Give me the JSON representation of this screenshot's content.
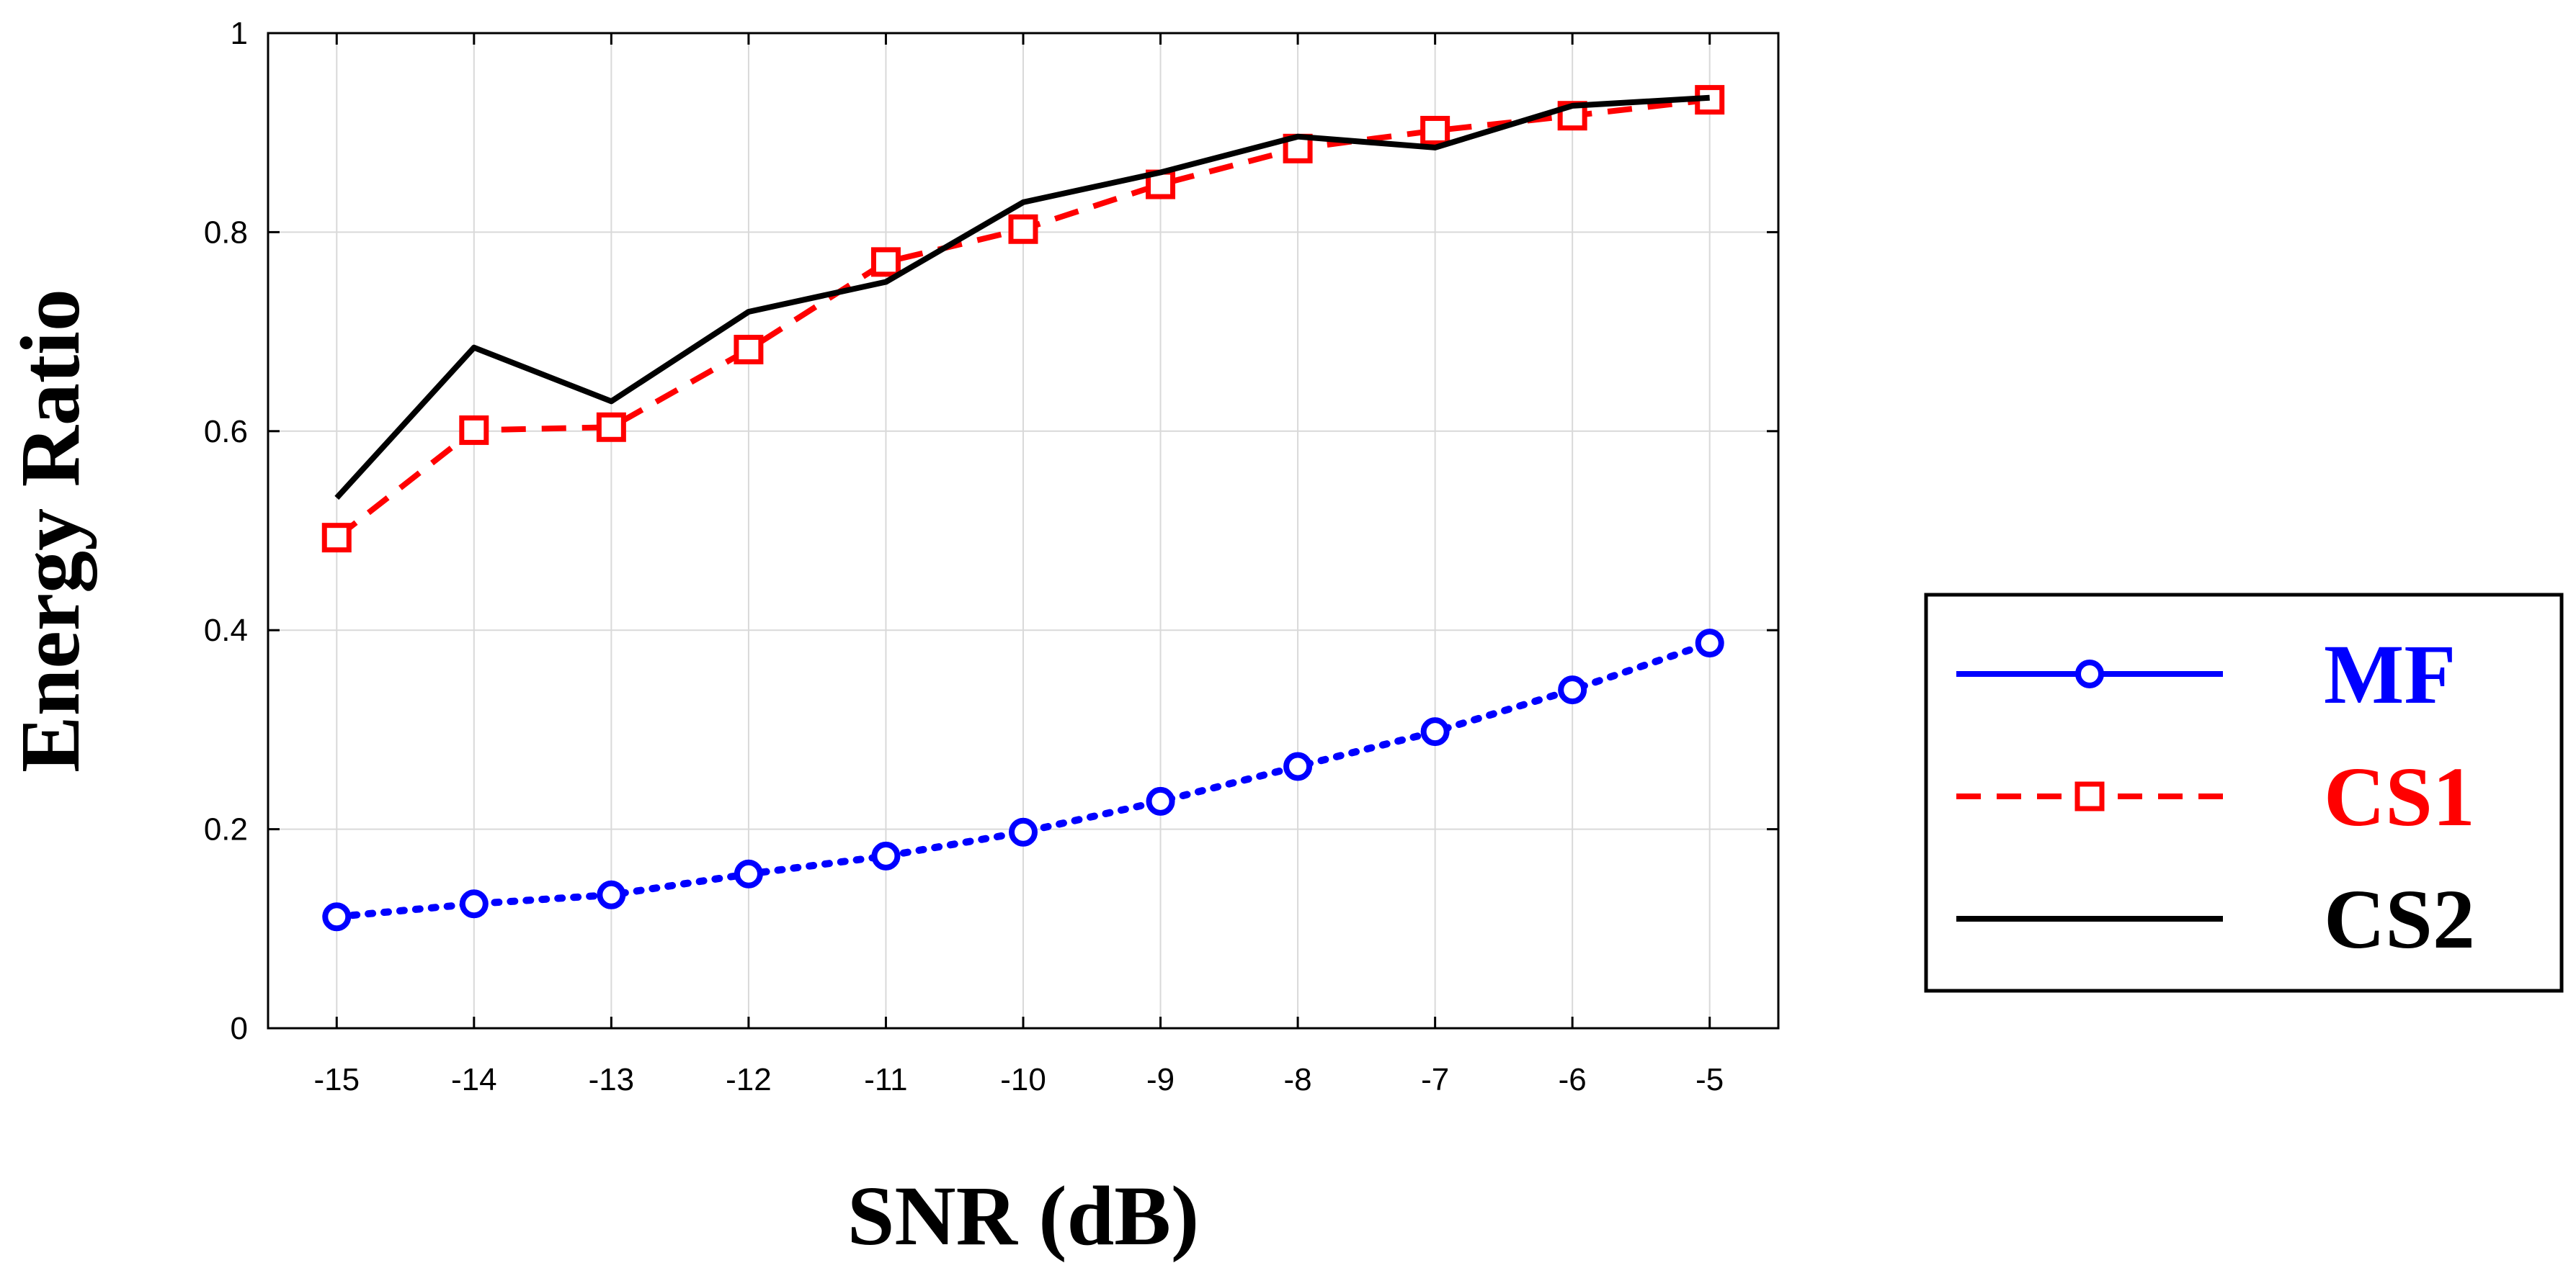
{
  "chart_data": {
    "type": "line",
    "title": "",
    "xlabel": "SNR (dB)",
    "ylabel": "Energy Ratio",
    "x": [
      -15,
      -14,
      -13,
      -12,
      -11,
      -10,
      -9,
      -8,
      -7,
      -6,
      -5
    ],
    "xlim": [
      -15.5,
      -4.5
    ],
    "ylim": [
      0,
      1
    ],
    "xticks": [
      "-15",
      "-14",
      "-13",
      "-12",
      "-11",
      "-10",
      "-9",
      "-8",
      "-7",
      "-6",
      "-5"
    ],
    "yticks": [
      "0",
      "0.2",
      "0.4",
      "0.6",
      "0.8",
      "1"
    ],
    "grid": true,
    "legend_position": "right",
    "series": [
      {
        "name": "MF",
        "color": "#0000ff",
        "line_style": "dotted",
        "legend_line_style": "solid",
        "marker": "circle",
        "values": [
          0.112,
          0.125,
          0.134,
          0.155,
          0.173,
          0.197,
          0.228,
          0.263,
          0.298,
          0.34,
          0.387
        ]
      },
      {
        "name": "CS1",
        "color": "#ff0000",
        "line_style": "dashed",
        "marker": "square",
        "values": [
          0.493,
          0.601,
          0.604,
          0.682,
          0.77,
          0.803,
          0.848,
          0.884,
          0.902,
          0.917,
          0.933
        ]
      },
      {
        "name": "CS2",
        "color": "#000000",
        "line_style": "solid",
        "marker": "none",
        "values": [
          0.533,
          0.684,
          0.63,
          0.72,
          0.75,
          0.83,
          0.86,
          0.896,
          0.885,
          0.927,
          0.935
        ]
      }
    ]
  }
}
